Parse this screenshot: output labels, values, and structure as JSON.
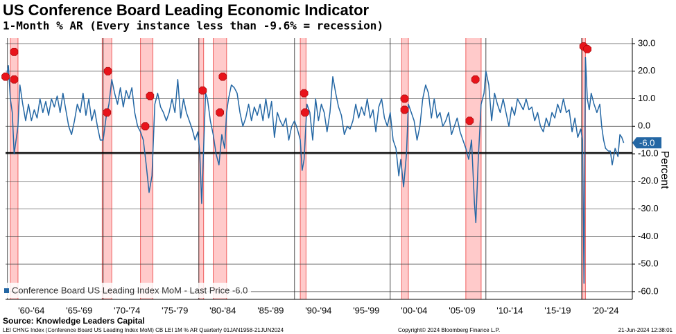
{
  "chart_data": {
    "type": "line",
    "title": "US Conference Board Leading Economic Indicator",
    "subtitle": "1-Month % AR (Every instance less than -9.6% = recession)",
    "y_axis_label": "Percent",
    "source": "Source: Knowledge Leaders Capital",
    "footer_left": "LEI CHNG Index (Conference Board US Leading Index MoM) CB LEI 1M % AR  Quarterly 01JAN1958-21JUN2024",
    "footer_center": "Copyright© 2024 Bloomberg Finance L.P.",
    "footer_right": "21-Jun-2024 12:38:01",
    "legend_position": "bottom-left",
    "grid": true,
    "threshold": -9.6,
    "last_price": {
      "value": -6,
      "label": "-6.0"
    },
    "xlim": [
      1959.8,
      2025.3
    ],
    "ylim": [
      -62.8,
      32
    ],
    "yticks": [
      {
        "value": 30,
        "label": "30.0"
      },
      {
        "value": 20,
        "label": "20.0"
      },
      {
        "value": 10,
        "label": "10.0"
      },
      {
        "value": 0,
        "label": "0.0"
      },
      {
        "value": -10,
        "label": "-10.0"
      },
      {
        "value": -20,
        "label": "-20.0"
      },
      {
        "value": -30,
        "label": "-30.0"
      },
      {
        "value": -40,
        "label": "-40.0"
      },
      {
        "value": -50,
        "label": "-50.0"
      },
      {
        "value": -60,
        "label": "-60.0"
      }
    ],
    "xticks": [
      {
        "value": 1962.5,
        "label": "'60-'64"
      },
      {
        "value": 1967.5,
        "label": "'65-'69"
      },
      {
        "value": 1972.5,
        "label": "'70-'74"
      },
      {
        "value": 1977.5,
        "label": "'75-'79"
      },
      {
        "value": 1982.5,
        "label": "'80-'84"
      },
      {
        "value": 1987.5,
        "label": "'85-'89"
      },
      {
        "value": 1992.5,
        "label": "'90-'94"
      },
      {
        "value": 1997.5,
        "label": "'95-'99"
      },
      {
        "value": 2002.5,
        "label": "'00-'04"
      },
      {
        "value": 2007.5,
        "label": "'05-'09"
      },
      {
        "value": 2012.5,
        "label": "'10-'14"
      },
      {
        "value": 2017.5,
        "label": "'15-'19"
      },
      {
        "value": 2022.5,
        "label": "'20-'24"
      }
    ],
    "xgrid": [
      1960,
      1970,
      1980,
      1990,
      2000,
      2010,
      2020
    ],
    "recessions": [
      [
        1960.3,
        1961.1
      ],
      [
        1969.9,
        1970.9
      ],
      [
        1973.9,
        1975.2
      ],
      [
        1980.0,
        1980.5
      ],
      [
        1981.5,
        1982.9
      ],
      [
        1990.6,
        1991.2
      ],
      [
        2001.2,
        2001.9
      ],
      [
        2007.9,
        2009.5
      ],
      [
        2020.1,
        2020.4
      ]
    ],
    "signals": {
      "x": [
        1959.8,
        1960.7,
        1960.7,
        1970.5,
        1970.4,
        1974.9,
        1974.4,
        1980.4,
        1982.5,
        1982.2,
        1991.0,
        1991.1,
        2001.5,
        2001.5,
        2008.9,
        2008.3,
        2020.2,
        2020.6
      ],
      "y": [
        18,
        27,
        17,
        20,
        5,
        11,
        0,
        13,
        18,
        5,
        12,
        5,
        10,
        6,
        17,
        2,
        29,
        28
      ],
      "color": "#e8141b"
    },
    "x": [
      1959.9,
      1960.1,
      1960.3,
      1960.5,
      1960.7,
      1960.9,
      1961.1,
      1961.3,
      1961.6,
      1961.9,
      1962.2,
      1962.5,
      1962.8,
      1963.1,
      1963.4,
      1963.7,
      1964.0,
      1964.3,
      1964.6,
      1964.9,
      1965.2,
      1965.5,
      1965.8,
      1966.1,
      1966.4,
      1966.7,
      1967.0,
      1967.3,
      1967.6,
      1967.9,
      1968.2,
      1968.5,
      1968.8,
      1969.1,
      1969.4,
      1969.7,
      1970.0,
      1970.3,
      1970.6,
      1970.9,
      1971.2,
      1971.5,
      1971.8,
      1972.1,
      1972.4,
      1972.7,
      1973.0,
      1973.3,
      1973.6,
      1973.9,
      1974.2,
      1974.5,
      1974.8,
      1975.1,
      1975.4,
      1975.7,
      1976.0,
      1976.3,
      1976.6,
      1976.9,
      1977.2,
      1977.5,
      1977.8,
      1978.1,
      1978.4,
      1978.7,
      1979.0,
      1979.3,
      1979.6,
      1979.9,
      1980.1,
      1980.3,
      1980.5,
      1980.7,
      1980.9,
      1981.2,
      1981.5,
      1981.8,
      1982.1,
      1982.4,
      1982.7,
      1982.9,
      1983.1,
      1983.4,
      1983.7,
      1984.0,
      1984.3,
      1984.6,
      1984.9,
      1985.2,
      1985.5,
      1985.8,
      1986.1,
      1986.4,
      1986.7,
      1987.0,
      1987.3,
      1987.6,
      1987.9,
      1988.2,
      1988.5,
      1988.8,
      1989.1,
      1989.4,
      1989.7,
      1990.0,
      1990.3,
      1990.6,
      1990.8,
      1991.0,
      1991.3,
      1991.6,
      1991.9,
      1992.2,
      1992.5,
      1992.8,
      1993.1,
      1993.4,
      1993.7,
      1994.0,
      1994.3,
      1994.6,
      1994.9,
      1995.2,
      1995.5,
      1995.8,
      1996.1,
      1996.4,
      1996.7,
      1997.0,
      1997.3,
      1997.6,
      1997.9,
      1998.2,
      1998.5,
      1998.8,
      1999.1,
      1999.4,
      1999.7,
      2000.0,
      2000.3,
      2000.6,
      2000.9,
      2001.1,
      2001.4,
      2001.7,
      2001.9,
      2002.2,
      2002.5,
      2002.8,
      2003.1,
      2003.4,
      2003.7,
      2004.0,
      2004.3,
      2004.6,
      2004.9,
      2005.2,
      2005.5,
      2005.8,
      2006.1,
      2006.4,
      2006.7,
      2007.0,
      2007.3,
      2007.6,
      2007.9,
      2008.2,
      2008.5,
      2008.8,
      2008.95,
      2009.2,
      2009.5,
      2009.8,
      2010.0,
      2010.3,
      2010.6,
      2010.9,
      2011.2,
      2011.5,
      2011.8,
      2012.1,
      2012.4,
      2012.7,
      2013.0,
      2013.3,
      2013.6,
      2013.9,
      2014.2,
      2014.5,
      2014.8,
      2015.1,
      2015.4,
      2015.7,
      2016.0,
      2016.3,
      2016.6,
      2016.9,
      2017.2,
      2017.5,
      2017.8,
      2018.1,
      2018.4,
      2018.7,
      2019.0,
      2019.3,
      2019.6,
      2019.9,
      2020.1,
      2020.25,
      2020.4,
      2020.6,
      2020.8,
      2021.0,
      2021.3,
      2021.6,
      2021.9,
      2022.1,
      2022.3,
      2022.5,
      2022.8,
      2023.0,
      2023.2,
      2023.5,
      2023.8,
      2024.0,
      2024.2,
      2024.4
    ],
    "series": [
      {
        "name": "Conference Board US Leading Index MoM - Last Price -6.0",
        "color": "#2467a4",
        "values": [
          18,
          22,
          10,
          5,
          -10,
          -5,
          0,
          15,
          8,
          2,
          8,
          2,
          6,
          3,
          10,
          5,
          9,
          4,
          10,
          7,
          11,
          5,
          12,
          6,
          0,
          -3,
          2,
          8,
          5,
          12,
          4,
          10,
          2,
          6,
          0,
          -5,
          -5,
          3,
          8,
          17,
          12,
          8,
          14,
          7,
          13,
          10,
          14,
          5,
          0,
          -2,
          -5,
          -14,
          -24,
          -18,
          8,
          12,
          7,
          5,
          2,
          5,
          10,
          5,
          17,
          3,
          10,
          5,
          2,
          -1,
          -5,
          -2,
          -10,
          -28,
          -8,
          12,
          10,
          2,
          -3,
          -10,
          -14,
          -3,
          -8,
          5,
          10,
          15,
          14,
          12,
          5,
          0,
          3,
          8,
          2,
          7,
          4,
          8,
          2,
          10,
          3,
          9,
          -4,
          5,
          2,
          0,
          3,
          -5,
          0,
          2,
          -1,
          -5,
          -16,
          -12,
          8,
          5,
          -5,
          10,
          2,
          8,
          5,
          -2,
          5,
          18,
          12,
          7,
          4,
          -3,
          0,
          -1,
          2,
          8,
          3,
          7,
          4,
          10,
          3,
          6,
          -2,
          7,
          10,
          3,
          0,
          5,
          -5,
          -8,
          -18,
          -12,
          -22,
          -10,
          8,
          5,
          2,
          -5,
          0,
          10,
          15,
          12,
          3,
          10,
          3,
          5,
          0,
          2,
          5,
          -3,
          0,
          3,
          -2,
          -5,
          -8,
          -12,
          -5,
          -28,
          -35,
          -12,
          8,
          12,
          20,
          15,
          2,
          12,
          8,
          5,
          10,
          5,
          0,
          7,
          4,
          10,
          8,
          6,
          10,
          6,
          7,
          2,
          5,
          0,
          -2,
          3,
          0,
          5,
          3,
          8,
          5,
          10,
          5,
          6,
          -2,
          3,
          -4,
          -1,
          -5,
          -57,
          25,
          10,
          6,
          12,
          8,
          5,
          8,
          0,
          -5,
          -8,
          -9,
          -9,
          -14,
          -8,
          -11,
          -3,
          -4,
          -6
        ]
      }
    ]
  }
}
